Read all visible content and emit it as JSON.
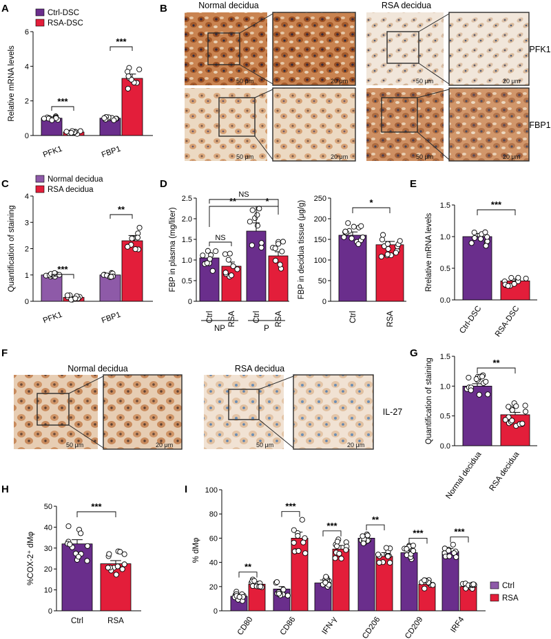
{
  "colors": {
    "purple": "#6a2e8c",
    "purple_light": "#8e5aa8",
    "red": "#e31e3a",
    "dot_fill": "#ffffff",
    "tissue_brown": "#c07a45",
    "tissue_light": "#efdcc6"
  },
  "panel_labels": [
    "A",
    "B",
    "C",
    "D",
    "E",
    "F",
    "G",
    "H",
    "I"
  ],
  "micrographs": {
    "B": {
      "titles": [
        "Normal decidua",
        "RSA decidua"
      ],
      "row_labels": [
        "PFK1",
        "FBP1"
      ],
      "scalebars": [
        "50 μm",
        "20 μm",
        "50 μm",
        "20 μm",
        "50 μm",
        "20 μm",
        "50 μm",
        "20 μm"
      ]
    },
    "F": {
      "titles": [
        "Normal decidua",
        "RSA decidua"
      ],
      "row_label": "IL-27",
      "scalebars": [
        "50 μm",
        "20 μm",
        "50 μm",
        "20 μm"
      ]
    }
  },
  "chart_data": [
    {
      "id": "A",
      "type": "bar",
      "ylabel": "Relative mRNA levels",
      "ylim": [
        0,
        6
      ],
      "yticks": [
        "0",
        "2",
        "4",
        "6"
      ],
      "categories": [
        "PFK1",
        "FBP1"
      ],
      "legend": [
        "Ctrl-DSC",
        "RSA-DSC"
      ],
      "series": [
        {
          "name": "Ctrl-DSC",
          "values": [
            1.0,
            1.0
          ],
          "errors": [
            0.08,
            0.05
          ]
        },
        {
          "name": "RSA-DSC",
          "values": [
            0.2,
            3.3
          ],
          "errors": [
            0.03,
            0.25
          ]
        }
      ],
      "significance": [
        "***",
        "***"
      ]
    },
    {
      "id": "C",
      "type": "bar",
      "ylabel": "Quantification of staining",
      "ylim": [
        0,
        4
      ],
      "yticks": [
        "0",
        "1",
        "2",
        "3",
        "4"
      ],
      "categories": [
        "PFK1",
        "FBP1"
      ],
      "legend": [
        "Normal decidua",
        "RSA decidua"
      ],
      "series": [
        {
          "name": "Normal decidua",
          "values": [
            1.0,
            1.0
          ],
          "errors": [
            0.06,
            0.05
          ]
        },
        {
          "name": "RSA decidua",
          "values": [
            0.15,
            2.3
          ],
          "errors": [
            0.03,
            0.2
          ]
        }
      ],
      "significance": [
        "***",
        "**"
      ]
    },
    {
      "id": "D1",
      "type": "bar",
      "ylabel": "FBP in plasma (mg/liter)",
      "ylim": [
        0,
        2.5
      ],
      "yticks": [
        "0",
        "0.5",
        "1.0",
        "1.5",
        "2.0",
        "2.5"
      ],
      "categories": [
        "Ctrl",
        "RSA",
        "Ctrl",
        "RSA"
      ],
      "groups": [
        "NP",
        "P"
      ],
      "values": [
        1.05,
        0.85,
        1.7,
        1.1
      ],
      "errors": [
        0.12,
        0.1,
        0.2,
        0.1
      ],
      "significance": [
        "NS",
        "**",
        "*",
        "NS"
      ]
    },
    {
      "id": "D2",
      "type": "bar",
      "ylabel": "FBP in decidua tissue (μg/g)",
      "ylim": [
        0,
        250
      ],
      "yticks": [
        "0",
        "50",
        "100",
        "150",
        "200",
        "250"
      ],
      "categories": [
        "Ctrl",
        "RSA"
      ],
      "values": [
        160,
        137
      ],
      "errors": [
        8,
        8
      ],
      "significance": [
        "*"
      ]
    },
    {
      "id": "E",
      "type": "bar",
      "ylabel": "Rrelative mRNA levels",
      "ylim": [
        0,
        1.5
      ],
      "yticks": [
        "0.0",
        "0.5",
        "1.0",
        "1.5"
      ],
      "categories": [
        "Ctrl-DSC",
        "RSA-DSC"
      ],
      "values": [
        1.0,
        0.3
      ],
      "errors": [
        0.05,
        0.03
      ],
      "significance": [
        "***"
      ]
    },
    {
      "id": "G",
      "type": "bar",
      "ylabel": "Quantification of staining",
      "ylim": [
        0,
        1.5
      ],
      "yticks": [
        "0.0",
        "0.5",
        "1.0",
        "1.5"
      ],
      "categories": [
        "Normal decidua",
        "RSA decidua"
      ],
      "values": [
        1.0,
        0.52
      ],
      "errors": [
        0.04,
        0.04
      ],
      "significance": [
        "**"
      ]
    },
    {
      "id": "H",
      "type": "bar",
      "ylabel": "%COX-2⁺ dMφ",
      "ylim": [
        0,
        50
      ],
      "yticks": [
        "0",
        "10",
        "20",
        "30",
        "40",
        "50"
      ],
      "categories": [
        "Ctrl",
        "RSA"
      ],
      "values": [
        32,
        22.5
      ],
      "errors": [
        2,
        1.5
      ],
      "significance": [
        "***"
      ]
    },
    {
      "id": "I",
      "type": "bar",
      "ylabel": "% dMφ",
      "ylim": [
        0,
        100
      ],
      "yticks": [
        "0",
        "20",
        "40",
        "60",
        "80",
        "100"
      ],
      "categories": [
        "CD80",
        "CD86",
        "IFN-γ",
        "CD206",
        "CD209",
        "IRF4"
      ],
      "legend": [
        "Ctrl",
        "RSA"
      ],
      "series": [
        {
          "name": "Ctrl",
          "values": [
            12,
            18,
            23,
            60,
            48,
            49
          ],
          "errors": [
            2,
            2,
            2.5,
            2,
            2,
            2.5
          ]
        },
        {
          "name": "RSA",
          "values": [
            22,
            60,
            51,
            45,
            22,
            20
          ],
          "errors": [
            2,
            5,
            3,
            3,
            2,
            1
          ]
        }
      ],
      "significance": [
        "**",
        "***",
        "***",
        "**",
        "***",
        "***"
      ]
    }
  ]
}
